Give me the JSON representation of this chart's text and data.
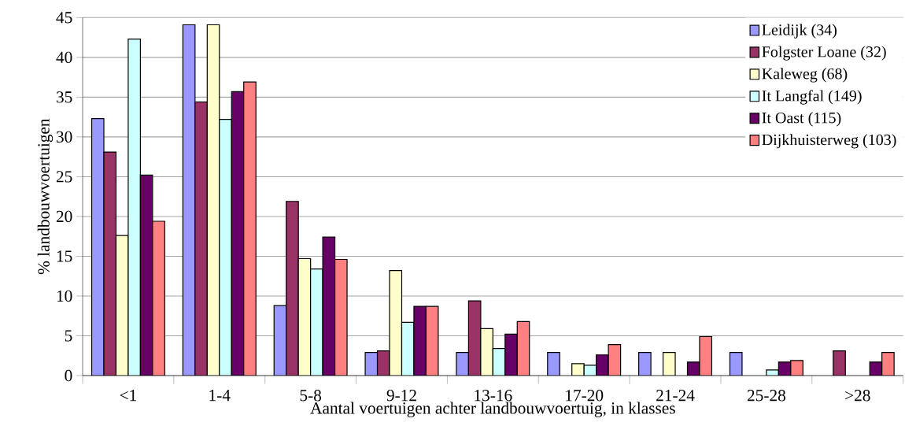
{
  "chart_data": {
    "type": "bar",
    "xlabel": "Aantal voertuigen achter landbouwvoertuig, in klasses",
    "ylabel": "% landbouwvoertuigen",
    "categories": [
      "<1",
      "1-4",
      "5-8",
      "9-12",
      "13-16",
      "17-20",
      "21-24",
      "25-28",
      ">28"
    ],
    "series": [
      {
        "name": "Leidijk (34)",
        "color": "#9999ff",
        "values": [
          32.3,
          44.1,
          8.8,
          2.9,
          2.9,
          2.9,
          2.9,
          2.9,
          null
        ]
      },
      {
        "name": "Folgster Loane (32)",
        "color": "#993366",
        "values": [
          28.1,
          34.4,
          21.9,
          3.1,
          9.4,
          null,
          null,
          null,
          3.1
        ]
      },
      {
        "name": "Kaleweg (68)",
        "color": "#ffffcc",
        "values": [
          17.6,
          44.1,
          14.7,
          13.2,
          5.9,
          1.5,
          2.9,
          null,
          null
        ]
      },
      {
        "name": "It Langfal (149)",
        "color": "#ccffff",
        "values": [
          42.3,
          32.2,
          13.4,
          6.7,
          3.4,
          1.3,
          null,
          0.7,
          null
        ]
      },
      {
        "name": "It Oast (115)",
        "color": "#660066",
        "values": [
          25.2,
          35.7,
          17.4,
          8.7,
          5.2,
          2.6,
          1.7,
          1.7,
          1.7
        ]
      },
      {
        "name": "Dijkhuisterweg (103)",
        "color": "#ff8080",
        "values": [
          19.4,
          36.9,
          14.6,
          8.7,
          6.8,
          3.9,
          4.9,
          1.9,
          2.9
        ]
      }
    ],
    "ylim": [
      0,
      45
    ],
    "yticks": [
      0,
      5,
      10,
      15,
      20,
      25,
      30,
      35,
      40,
      45
    ],
    "grid": "y",
    "legend": "top right"
  }
}
